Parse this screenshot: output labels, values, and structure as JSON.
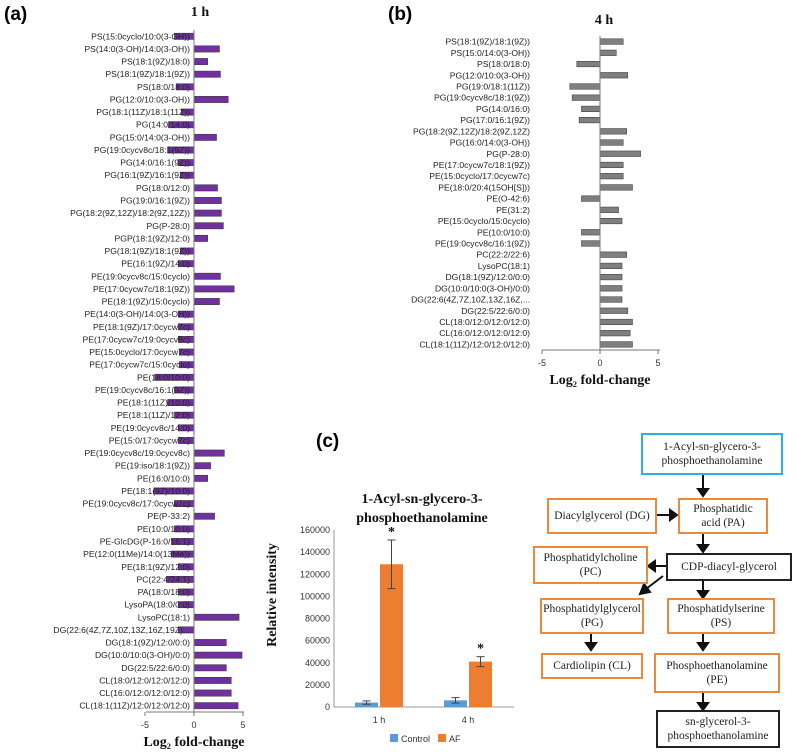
{
  "panels": {
    "a": "(a)",
    "b": "(b)",
    "c": "(c)"
  },
  "chart_data": [
    {
      "type": "bar",
      "orientation": "horizontal",
      "title": "1 h",
      "xlabel": "Log₂ fold-change",
      "xlim": [
        -5,
        5
      ],
      "xticks": [
        "-5",
        "0",
        "5"
      ],
      "color": "#7030a0",
      "categories": [
        "PS(15:0cyclo/10:0(3-OH))",
        "PS(14:0(3-OH)/14:0(3-OH))",
        "PS(18:1(9Z)/18:0)",
        "PS(18:1(9Z)/18:1(9Z))",
        "PS(18:0/18:0)",
        "PG(12:0/10:0(3-OH))",
        "PG(18:1(11Z)/18:1(11Z))",
        "PG(14:0/14:0)",
        "PG(15:0/14:0(3-OH))",
        "PG(19:0cycv8c/18:1(9Z))",
        "PG(14:0/16:1(9Z))",
        "PG(16:1(9Z)/16:1(9Z))",
        "PG(18:0/12:0)",
        "PG(19:0/16:1(9Z))",
        "PG(18:2(9Z,12Z)/18:2(9Z,12Z))",
        "PG(P-28:0)",
        "PGP(18:1(9Z)/12:0)",
        "PG(18:1(9Z)/18:1(9Z))",
        "PE(16:1(9Z)/14:0)",
        "PE(19:0cycv8c/15:0cyclo)",
        "PE(17:0cycw7c/18:1(9Z))",
        "PE(18:1(9Z)/15:0cyclo)",
        "PE(14:0(3-OH)/14:0(3-OH))",
        "PE(18:1(9Z)/17:0cycw7c)",
        "PE(17:0cycw7c/19:0cycv8c)",
        "PE(15:0cyclo/17:0cycw7c)",
        "PE(17:0cycw7c/15:0cyclo)",
        "PE(18:0/10:0)",
        "PE(19:0cycv8c/16:1(9Z))",
        "PE(18:1(11Z)/10:0)",
        "PE(18:1(11Z)/12:0)",
        "PE(19:0cycv8c/14:0)",
        "PE(15:0/17:0cycw7c)",
        "PE(19:0cycv8c/19:0cycv8c)",
        "PE(19:iso/18:1(9Z))",
        "PE(16:0/10:0)",
        "PE(18:1(9Z)/10:0)",
        "PE(19:0cycv8c/17:0cycw7c)",
        "PE(P-33:2)",
        "PE(10:0/10:0)",
        "PE-GlcDG(P-16:0/16:1)",
        "PE(12:0(11Me)/14:0(13Me))",
        "PE(18:1(9Z)/12:0)",
        "PC(22:4/24:1)",
        "PA(18:0/18:0)",
        "LysoPA(18:0/0:0)",
        "LysoPC(18:1)",
        "DG(22:6(4Z,7Z,10Z,13Z,16Z,19Z)...",
        "DG(18:1(9Z)/12:0/0:0)",
        "DG(10:0/10:0(3-OH)/0:0)",
        "DG(22:5/22:6/0:0)",
        "CL(18:0/12:0/12:0/12:0)",
        "CL(16:0/12:0/12:0/12:0)",
        "CL(18:1(11Z)/12:0/12:0/12:0)"
      ],
      "values": [
        -2.0,
        2.6,
        1.4,
        2.7,
        -1.8,
        3.5,
        -1.3,
        -2.6,
        2.3,
        -2.7,
        -1.6,
        -1.4,
        2.4,
        2.8,
        2.8,
        3.0,
        1.4,
        -1.4,
        -1.6,
        2.7,
        4.1,
        2.6,
        -1.6,
        -1.6,
        -1.6,
        -1.5,
        -1.5,
        -4.0,
        -2.0,
        -2.7,
        -2.0,
        -1.6,
        -1.6,
        3.1,
        1.7,
        1.4,
        -4.1,
        -2.0,
        2.1,
        -2.0,
        -2.3,
        -2.3,
        -1.6,
        -2.8,
        -1.6,
        -1.6,
        4.6,
        -1.6,
        3.3,
        4.9,
        3.3,
        3.8,
        3.8,
        4.5
      ]
    },
    {
      "type": "bar",
      "orientation": "horizontal",
      "title": "4 h",
      "xlabel": "Log₂ fold-change",
      "xlim": [
        -5,
        5
      ],
      "xticks": [
        "-5",
        "0",
        "5"
      ],
      "color": "#7f7f7f",
      "categories": [
        "PS(18:1(9Z)/18:1(9Z))",
        "PS(15:0/14:0(3-OH))",
        "PS(18:0/18:0)",
        "PG(12:0/10:0(3-OH))",
        "PG(19:0/18:1(11Z))",
        "PG(19:0cycv8c/18:1(9Z))",
        "PG(14:0/16:0)",
        "PG(17:0/16:1(9Z))",
        "PG(18:2(9Z,12Z)/18:2(9Z,12Z)",
        "PG(16:0/14:0(3-OH))",
        "PG(P-28:0)",
        "PE(17:0cycw7c/18:1(9Z))",
        "PE(15:0cyclo/17:0cycw7c)",
        "PE(18:0/20:4(15OH[S]))",
        "PE(O-42:6)",
        "PE(31:2)",
        "PE(15:0cyclo/15:0cyclo)",
        "PE(10:0/10:0)",
        "PE(19:0cycv8c/16:1(9Z))",
        "PC(22:2/22:6)",
        "LysoPC(18:1)",
        "DG(18:1(9Z)/12:0/0:0)",
        "DG(10:0/10:0(3-OH)/0:0)",
        "DG(22:6(4Z,7Z,10Z,13Z,16Z,...",
        "DG(22:5/22:6/0:0)",
        "CL(18:0/12:0/12:0/12:0)",
        "CL(16:0/12:0/12:0/12:0)",
        "CL(18:1(11Z)/12:0/12:0/12:0)"
      ],
      "values": [
        2.0,
        1.4,
        -2.0,
        2.4,
        -2.6,
        -2.4,
        -1.6,
        -1.8,
        2.3,
        2.0,
        3.5,
        2.0,
        2.0,
        2.8,
        -1.6,
        1.6,
        1.9,
        -1.6,
        -1.6,
        2.3,
        1.9,
        1.9,
        1.9,
        1.9,
        2.4,
        2.8,
        2.6,
        2.8
      ]
    },
    {
      "type": "bar",
      "title_line1": "1-Acyl-sn-glycero-3-",
      "title_line2": "phosphoethanolamine",
      "ylabel": "Relative intensity",
      "ylim": [
        0,
        160000
      ],
      "yticks": [
        "0",
        "20000",
        "40000",
        "60000",
        "80000",
        "100000",
        "120000",
        "140000",
        "160000"
      ],
      "categories": [
        "1 h",
        "4 h"
      ],
      "series": [
        {
          "name": "Control",
          "color": "#5b9bd5",
          "values": [
            4000,
            6000
          ],
          "errors": [
            1500,
            2500
          ]
        },
        {
          "name": "AF",
          "color": "#ed7d31",
          "values": [
            129000,
            41000
          ],
          "errors": [
            22000,
            4500
          ]
        }
      ],
      "annotations": [
        "*",
        "*"
      ]
    }
  ],
  "pathway": {
    "top": "1-Acyl-sn-glycero-3-phosphoethanolamine",
    "dg": "Diacylglycerol (DG)",
    "pa": "Phosphatidic acid (PA)",
    "pc": "Phosphatidylcholine (PC)",
    "cdp": "CDP-diacyl-glycerol",
    "pg": "Phosphatidylglycerol (PG)",
    "ps": "Phosphatidylserine (PS)",
    "cl": "Cardiolipin (CL)",
    "pe": "Phosphoethanolamine (PE)",
    "sn": "sn-glycerol-3-phosphoethanolamine"
  }
}
